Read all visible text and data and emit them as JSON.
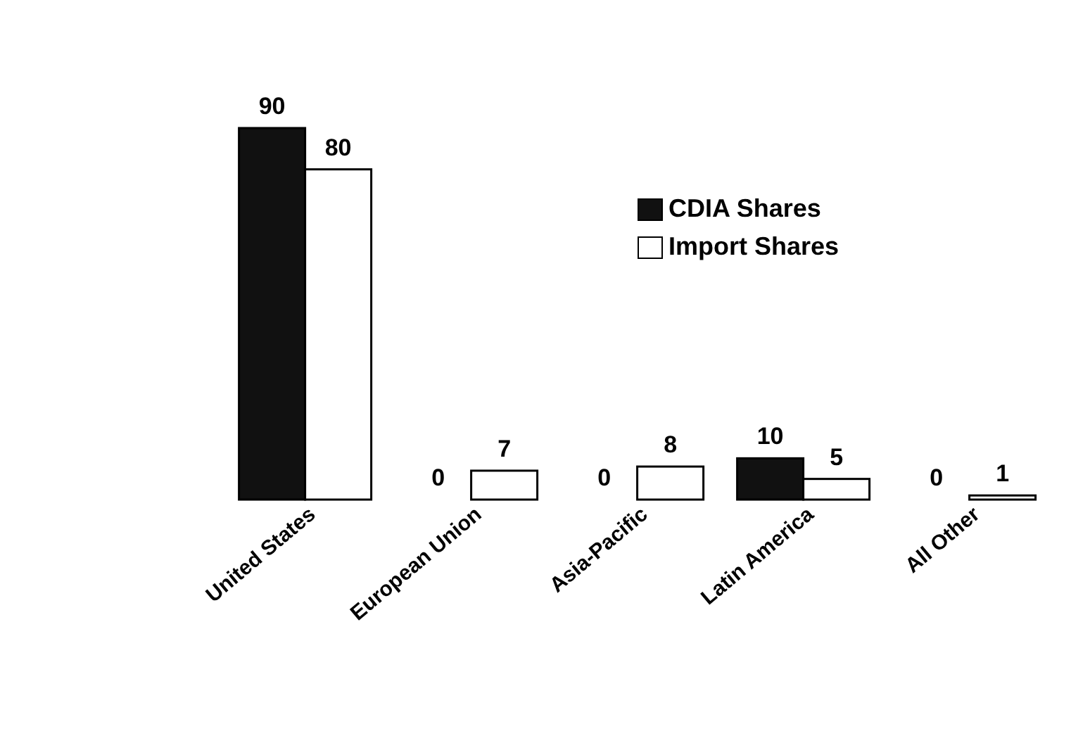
{
  "chart_data": {
    "type": "bar",
    "categories": [
      "United States",
      "European Union",
      "Asia-Pacific",
      "Latin America",
      "All Other"
    ],
    "series": [
      {
        "name": "CDIA Shares",
        "color": "#111111",
        "values": [
          90,
          0,
          0,
          10,
          0
        ]
      },
      {
        "name": "Import Shares",
        "color": "#ffffff",
        "values": [
          80,
          7,
          8,
          5,
          1
        ]
      }
    ],
    "data_labels": true,
    "legend": "top right",
    "grid": false
  }
}
